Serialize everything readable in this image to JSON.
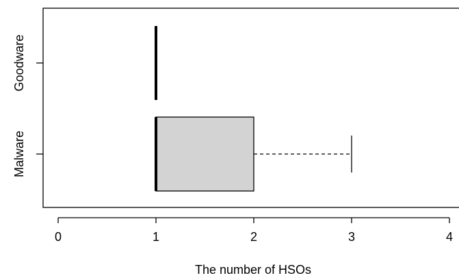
{
  "chart_data": {
    "type": "boxplot",
    "orientation": "horizontal",
    "xlabel": "The number of HSOs",
    "ylabel": "",
    "title": "",
    "xlim": [
      0,
      4
    ],
    "x_ticks": [
      0,
      1,
      2,
      3,
      4
    ],
    "grid": false,
    "categories": [
      "Malware",
      "Goodware"
    ],
    "series": [
      {
        "name": "Malware",
        "whisker_low": 1,
        "q1": 1,
        "median": 1,
        "q3": 2,
        "whisker_high": 3,
        "fill": "#d3d3d3"
      },
      {
        "name": "Goodware",
        "whisker_low": 1,
        "q1": 1,
        "median": 1,
        "q3": 1,
        "whisker_high": 1,
        "fill": "#d3d3d3"
      }
    ]
  }
}
